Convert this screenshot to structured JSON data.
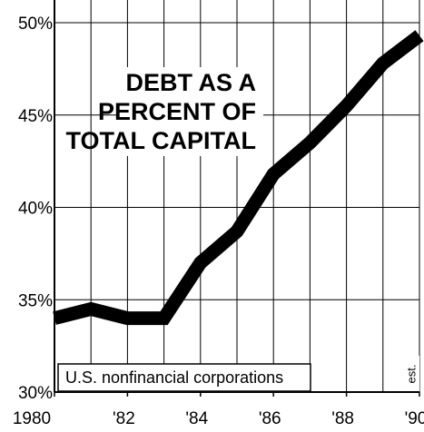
{
  "chart_data": {
    "type": "line",
    "title": [
      "DEBT AS A",
      "PERCENT OF",
      "TOTAL CAPITAL"
    ],
    "annotations": [
      "U.S. nonfinancial corporations",
      "est."
    ],
    "x": [
      1980,
      1981,
      1982,
      1983,
      1984,
      1985,
      1986,
      1987,
      1988,
      1989,
      1990
    ],
    "series": [
      {
        "name": "Debt as a percent of total capital",
        "color": "#000000",
        "values": [
          34,
          34.5,
          34,
          34,
          37,
          38.7,
          41.8,
          43.5,
          45.5,
          47.8,
          49.3
        ]
      }
    ],
    "xlim": [
      1980,
      1990
    ],
    "xticks": [
      1980,
      {
        "value": 1982,
        "label": "'82"
      },
      {
        "value": 1984,
        "label": "'84"
      },
      {
        "value": 1986,
        "label": "'86"
      },
      {
        "value": 1988,
        "label": "'88"
      },
      {
        "value": 1990,
        "label": "'90"
      }
    ],
    "ylim": [
      30,
      50
    ],
    "yticks": [
      {
        "value": 30,
        "label": "30%"
      },
      {
        "value": 35,
        "label": "35%"
      },
      {
        "value": 40,
        "label": "40%"
      },
      {
        "value": 45,
        "label": "45%"
      },
      {
        "value": 50,
        "label": "50%"
      }
    ],
    "grid": true
  }
}
